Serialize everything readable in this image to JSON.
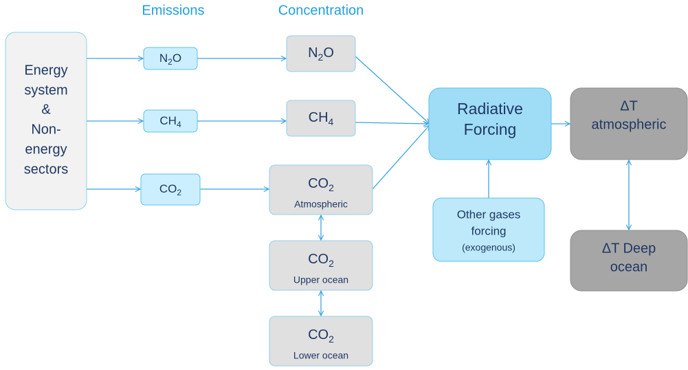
{
  "headers": [
    "Emissions",
    "Concentration"
  ],
  "source": {
    "lines": [
      "Energy",
      "system",
      "&",
      "Non-",
      "energy",
      "sectors"
    ]
  },
  "emissions": [
    [
      "N",
      "2",
      "O"
    ],
    [
      "CH",
      "4"
    ],
    [
      "CO",
      "2"
    ]
  ],
  "concentration": [
    {
      "formula": [
        "N",
        "2",
        "O"
      ]
    },
    {
      "formula": [
        "CH",
        "4"
      ]
    },
    {
      "formula": [
        "CO",
        "2"
      ],
      "note": "Atmospheric"
    },
    {
      "formula": [
        "CO",
        "2"
      ],
      "note": "Upper ocean"
    },
    {
      "formula": [
        "CO",
        "2"
      ],
      "note": "Lower ocean"
    }
  ],
  "radiative_forcing": [
    "Radiative",
    "Forcing"
  ],
  "other_gases": [
    "Other gases",
    "forcing",
    "(exogenous)"
  ],
  "dt_atmospheric": [
    "ΔT",
    "atmospheric"
  ],
  "dt_deep_ocean": [
    "ΔT Deep",
    "ocean"
  ]
}
